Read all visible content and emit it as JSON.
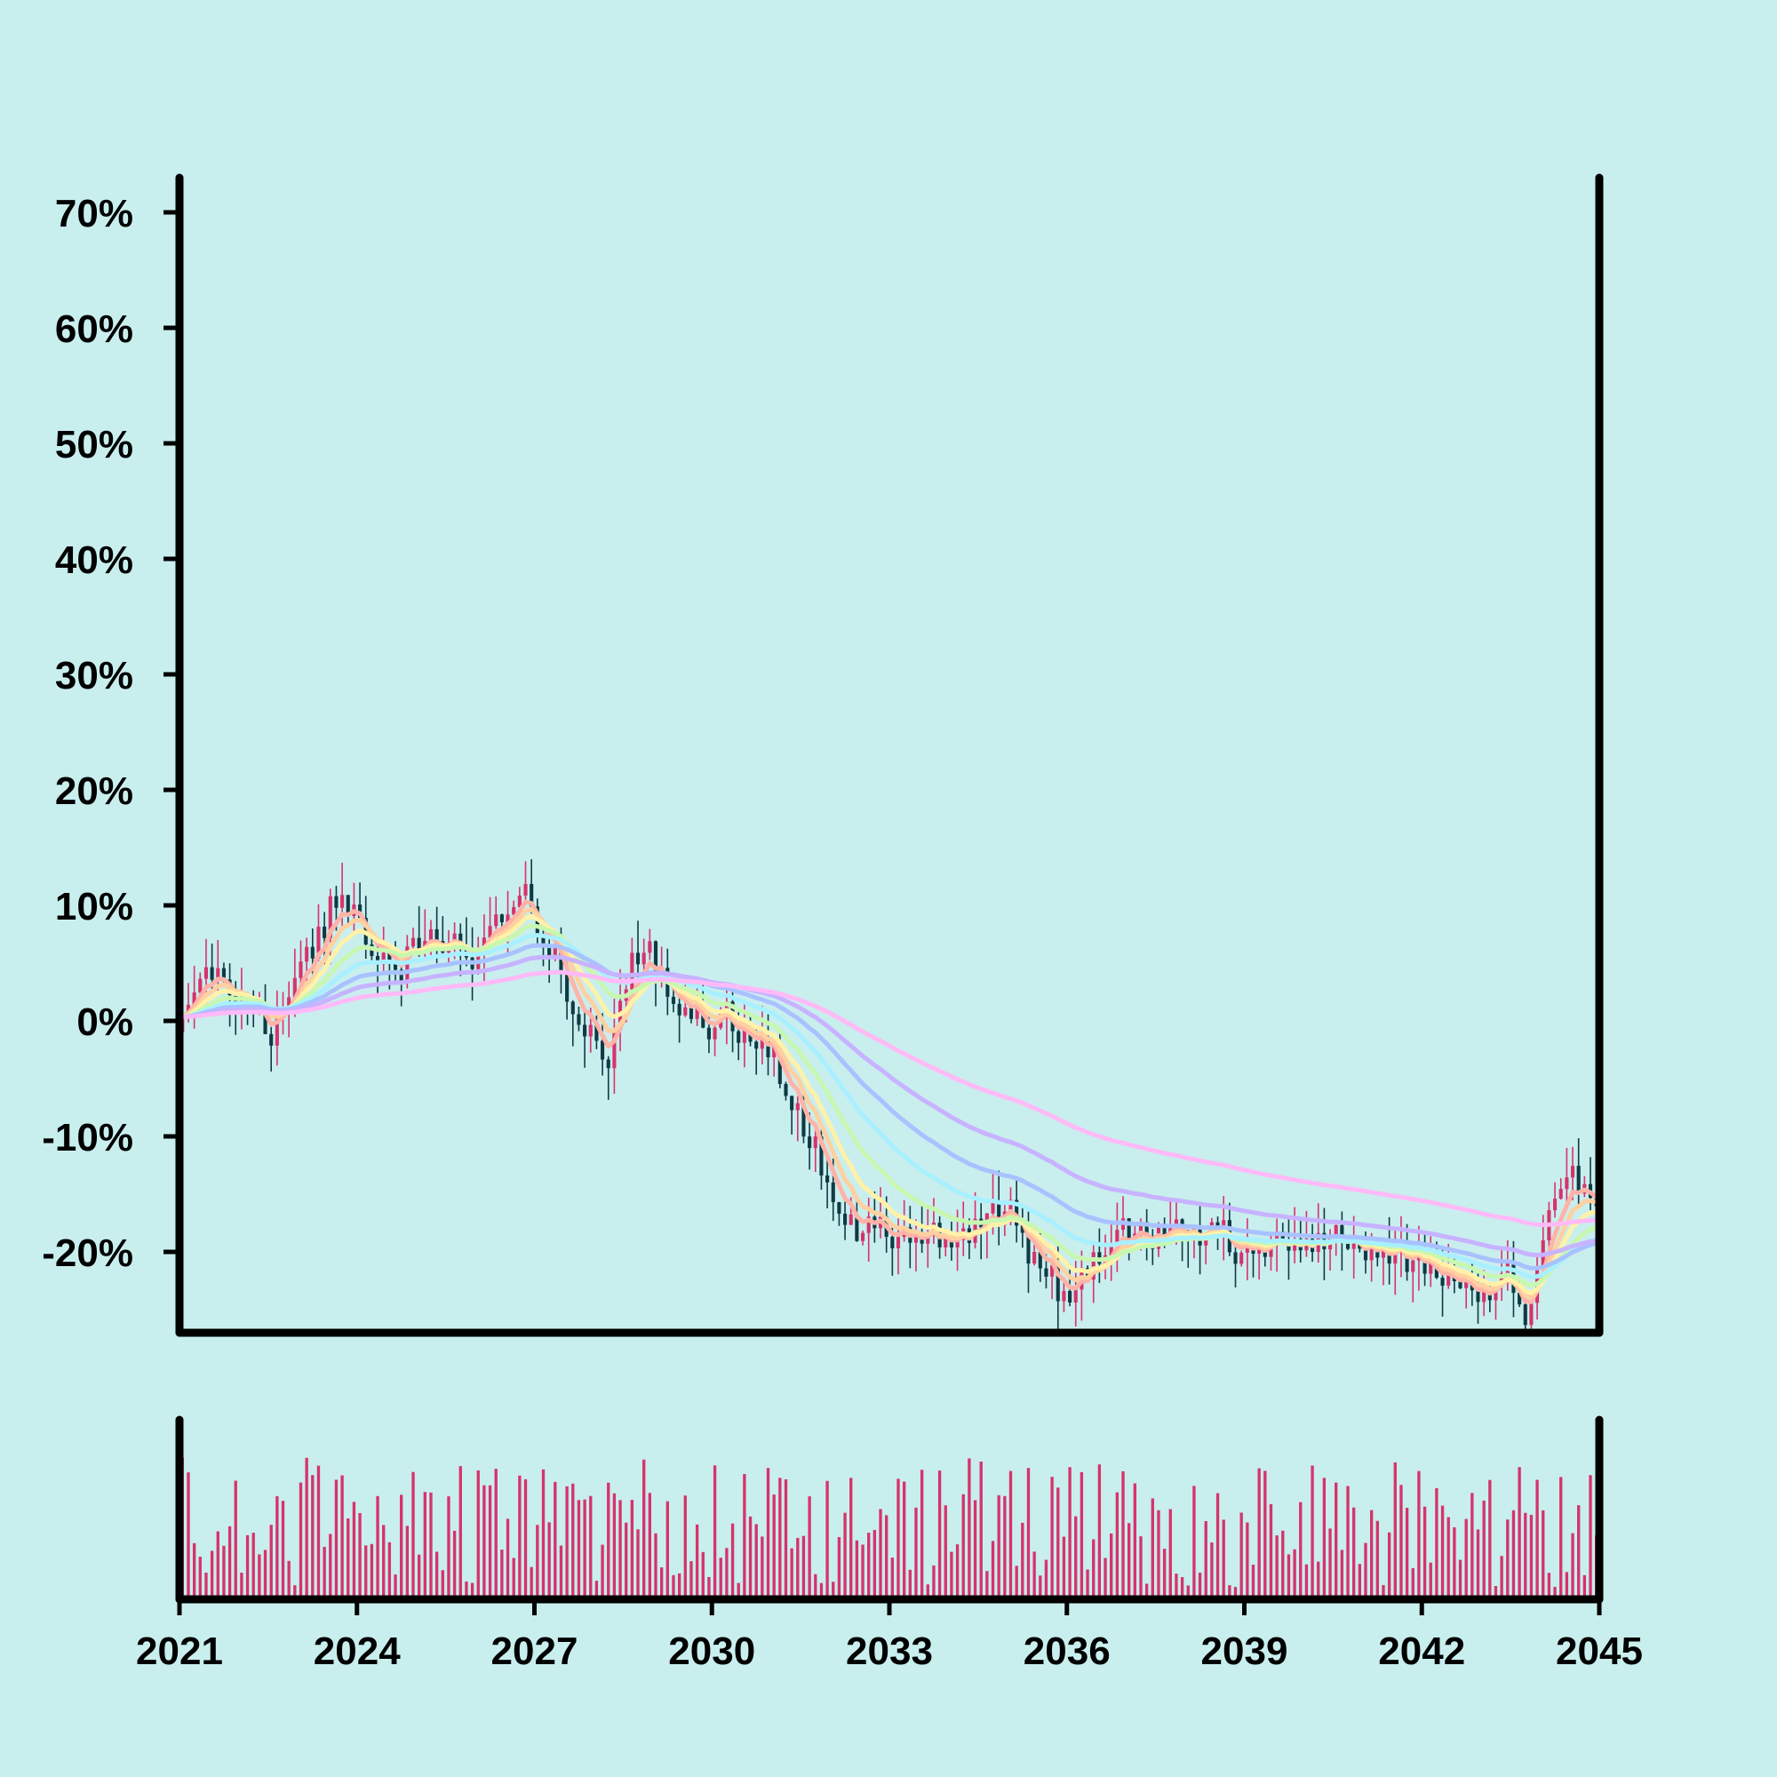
{
  "chart_data": {
    "type": "candlestick",
    "background": "#c9eeee",
    "colors": {
      "up": "#d6336c",
      "down": "#0e3a44",
      "volume": "#d6336c",
      "axis": "#000000"
    },
    "x_axis": {
      "range": [
        2021.0,
        2045.0
      ],
      "ticks": [
        2021,
        2024,
        2027,
        2030,
        2033,
        2036,
        2039,
        2042,
        2045
      ],
      "tick_labels": [
        "2021",
        "2024",
        "2027",
        "2030",
        "2033",
        "2036",
        "2039",
        "2042",
        "2045"
      ]
    },
    "y_axis": {
      "range": [
        -27,
        73
      ],
      "ticks": [
        -20,
        -10,
        0,
        10,
        20,
        30,
        40,
        50,
        60,
        70
      ],
      "tick_labels": [
        "-20%",
        "-10%",
        "0%",
        "10%",
        "20%",
        "30%",
        "40%",
        "50%",
        "60%",
        "70%"
      ],
      "unit": "%"
    },
    "price_path": {
      "t": [
        2021.0,
        2021.5,
        2022.3,
        2022.6,
        2023.2,
        2023.7,
        2024.5,
        2025.3,
        2026.0,
        2026.5,
        2026.9,
        2027.4,
        2027.8,
        2028.3,
        2028.8,
        2029.3,
        2029.8,
        2030.4,
        2031.0,
        2031.5,
        2032.0,
        2032.5,
        2033.2,
        2033.8,
        2034.5,
        2035.0,
        2035.5,
        2036.0,
        2036.6,
        2037.2,
        2037.8,
        2038.5,
        2039.5,
        2040.5,
        2041.5,
        2042.3,
        2043.0,
        2043.5,
        2043.8,
        2044.2,
        2044.6,
        2045.0
      ],
      "v": [
        -1,
        4,
        1,
        -1,
        6,
        11,
        5,
        7,
        6,
        8,
        10,
        6,
        -1,
        -3,
        7,
        3,
        0,
        0,
        -3,
        -8,
        -15,
        -18,
        -18,
        -19,
        -18,
        -17,
        -21,
        -24,
        -20,
        -18,
        -18,
        -19,
        -19,
        -19,
        -20,
        -22,
        -24,
        -22,
        -26,
        -17,
        -14,
        -15
      ]
    },
    "moving_averages": [
      {
        "window": 5,
        "color": "#ffb3a7"
      },
      {
        "window": 8,
        "color": "#ffd0a0"
      },
      {
        "window": 12,
        "color": "#fff2a8"
      },
      {
        "window": 20,
        "color": "#c8f7b0"
      },
      {
        "window": 32,
        "color": "#a8f0ff"
      },
      {
        "window": 48,
        "color": "#a9c2ff"
      },
      {
        "window": 72,
        "color": "#c7b3ff"
      },
      {
        "window": 120,
        "color": "#ffbaf7"
      }
    ],
    "volume": {
      "note": "relative volume per period, one bar per candle",
      "range": [
        0,
        1
      ]
    },
    "legend": "none",
    "grid": false
  }
}
